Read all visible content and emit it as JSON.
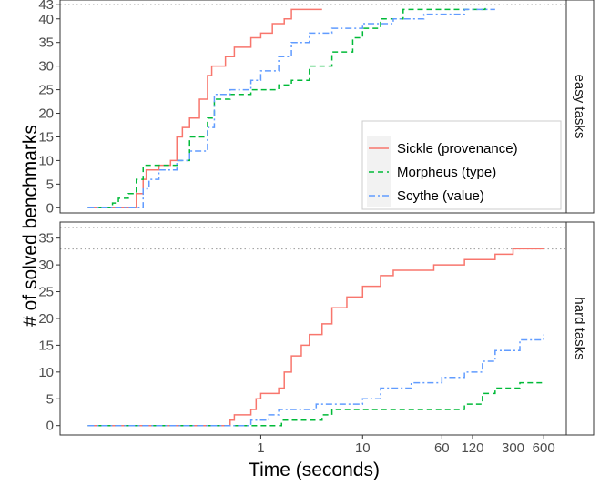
{
  "chart_data": {
    "type": "line",
    "x_axis": {
      "label": "Time (seconds)",
      "scale": "log",
      "ticks": [
        1,
        10,
        60,
        120,
        300,
        600
      ],
      "tick_labels": [
        "1",
        "10",
        "60",
        "120",
        "300",
        "600"
      ],
      "range": [
        0.0107,
        1000
      ]
    },
    "y_axis_label": "# of solved benchmarks",
    "legend": {
      "placement": "inside-bottom-right of top panel",
      "entries": [
        {
          "name": "Sickle (provenance)",
          "color": "#F8766D",
          "dash": "solid"
        },
        {
          "name": "Morpheus (type)",
          "color": "#00BA38",
          "dash": "dashed"
        },
        {
          "name": "Scythe (value)",
          "color": "#619CFF",
          "dash": "dotdash"
        }
      ]
    },
    "panels": [
      {
        "strip": "easy tasks",
        "y_ticks": [
          0,
          5,
          10,
          15,
          20,
          25,
          30,
          35,
          40,
          43
        ],
        "y_range": [
          -1.1,
          44.0
        ],
        "reference_lines": [
          43
        ],
        "series": [
          {
            "name": "Sickle (provenance)",
            "points": [
              [
                0.02,
                0
              ],
              [
                0.05,
                0
              ],
              [
                0.06,
                3
              ],
              [
                0.07,
                6
              ],
              [
                0.075,
                8
              ],
              [
                0.1,
                9
              ],
              [
                0.13,
                10
              ],
              [
                0.15,
                15
              ],
              [
                0.17,
                17
              ],
              [
                0.2,
                19
              ],
              [
                0.25,
                23
              ],
              [
                0.3,
                28
              ],
              [
                0.33,
                30
              ],
              [
                0.45,
                32
              ],
              [
                0.55,
                34
              ],
              [
                0.8,
                36
              ],
              [
                1.0,
                37
              ],
              [
                1.3,
                39
              ],
              [
                1.7,
                40
              ],
              [
                2.0,
                42
              ],
              [
                4.0,
                42
              ]
            ]
          },
          {
            "name": "Morpheus (type)",
            "points": [
              [
                0.02,
                0
              ],
              [
                0.035,
                1
              ],
              [
                0.04,
                2
              ],
              [
                0.05,
                3
              ],
              [
                0.06,
                6
              ],
              [
                0.07,
                9
              ],
              [
                0.15,
                10
              ],
              [
                0.2,
                15
              ],
              [
                0.3,
                19
              ],
              [
                0.35,
                23
              ],
              [
                0.5,
                24
              ],
              [
                0.8,
                25
              ],
              [
                1.5,
                26
              ],
              [
                2.0,
                27
              ],
              [
                3.0,
                30
              ],
              [
                5.0,
                33
              ],
              [
                8.0,
                36
              ],
              [
                10.0,
                38
              ],
              [
                15.0,
                40
              ],
              [
                25.0,
                42
              ],
              [
                160.0,
                43
              ]
            ]
          },
          {
            "name": "Scythe (value)",
            "points": [
              [
                0.02,
                0
              ],
              [
                0.05,
                0
              ],
              [
                0.07,
                4
              ],
              [
                0.08,
                6
              ],
              [
                0.1,
                8
              ],
              [
                0.15,
                10
              ],
              [
                0.2,
                12
              ],
              [
                0.3,
                17
              ],
              [
                0.35,
                24
              ],
              [
                0.5,
                25
              ],
              [
                0.8,
                27
              ],
              [
                1.0,
                29
              ],
              [
                1.5,
                32
              ],
              [
                2.0,
                35
              ],
              [
                3.0,
                37
              ],
              [
                5.0,
                38
              ],
              [
                10.0,
                39
              ],
              [
                20.0,
                40
              ],
              [
                40.0,
                41
              ],
              [
                100.0,
                42
              ],
              [
                200.0,
                42
              ]
            ]
          }
        ]
      },
      {
        "strip": "hard tasks",
        "y_ticks": [
          0,
          5,
          10,
          15,
          20,
          25,
          30,
          35
        ],
        "y_range": [
          -1.75,
          38.0
        ],
        "reference_lines": [
          33,
          37
        ],
        "series": [
          {
            "name": "Sickle (provenance)",
            "points": [
              [
                0.02,
                0
              ],
              [
                0.45,
                0
              ],
              [
                0.5,
                1
              ],
              [
                0.55,
                2
              ],
              [
                0.8,
                3
              ],
              [
                0.9,
                5
              ],
              [
                1.0,
                6
              ],
              [
                1.5,
                7
              ],
              [
                1.7,
                10
              ],
              [
                2.0,
                13
              ],
              [
                2.5,
                15
              ],
              [
                3.0,
                17
              ],
              [
                4.0,
                19
              ],
              [
                5.0,
                22
              ],
              [
                7.0,
                24
              ],
              [
                10.0,
                26
              ],
              [
                15.0,
                28
              ],
              [
                20.0,
                29
              ],
              [
                50.0,
                30
              ],
              [
                100.0,
                31
              ],
              [
                200.0,
                32
              ],
              [
                300.0,
                33
              ],
              [
                600.0,
                33
              ]
            ]
          },
          {
            "name": "Morpheus (type)",
            "points": [
              [
                0.02,
                0
              ],
              [
                1.5,
                0
              ],
              [
                1.6,
                1
              ],
              [
                4.0,
                2
              ],
              [
                5.0,
                3
              ],
              [
                100.0,
                4
              ],
              [
                150.0,
                6
              ],
              [
                200.0,
                7
              ],
              [
                350.0,
                8
              ],
              [
                600.0,
                8
              ]
            ]
          },
          {
            "name": "Scythe (value)",
            "points": [
              [
                0.02,
                0
              ],
              [
                0.7,
                0
              ],
              [
                0.8,
                1
              ],
              [
                1.2,
                2
              ],
              [
                1.5,
                3
              ],
              [
                3.5,
                4
              ],
              [
                10.0,
                5
              ],
              [
                15.0,
                7
              ],
              [
                30.0,
                8
              ],
              [
                60.0,
                9
              ],
              [
                100.0,
                10
              ],
              [
                150.0,
                12
              ],
              [
                200.0,
                14
              ],
              [
                350.0,
                16
              ],
              [
                600.0,
                17
              ]
            ]
          }
        ]
      }
    ]
  }
}
